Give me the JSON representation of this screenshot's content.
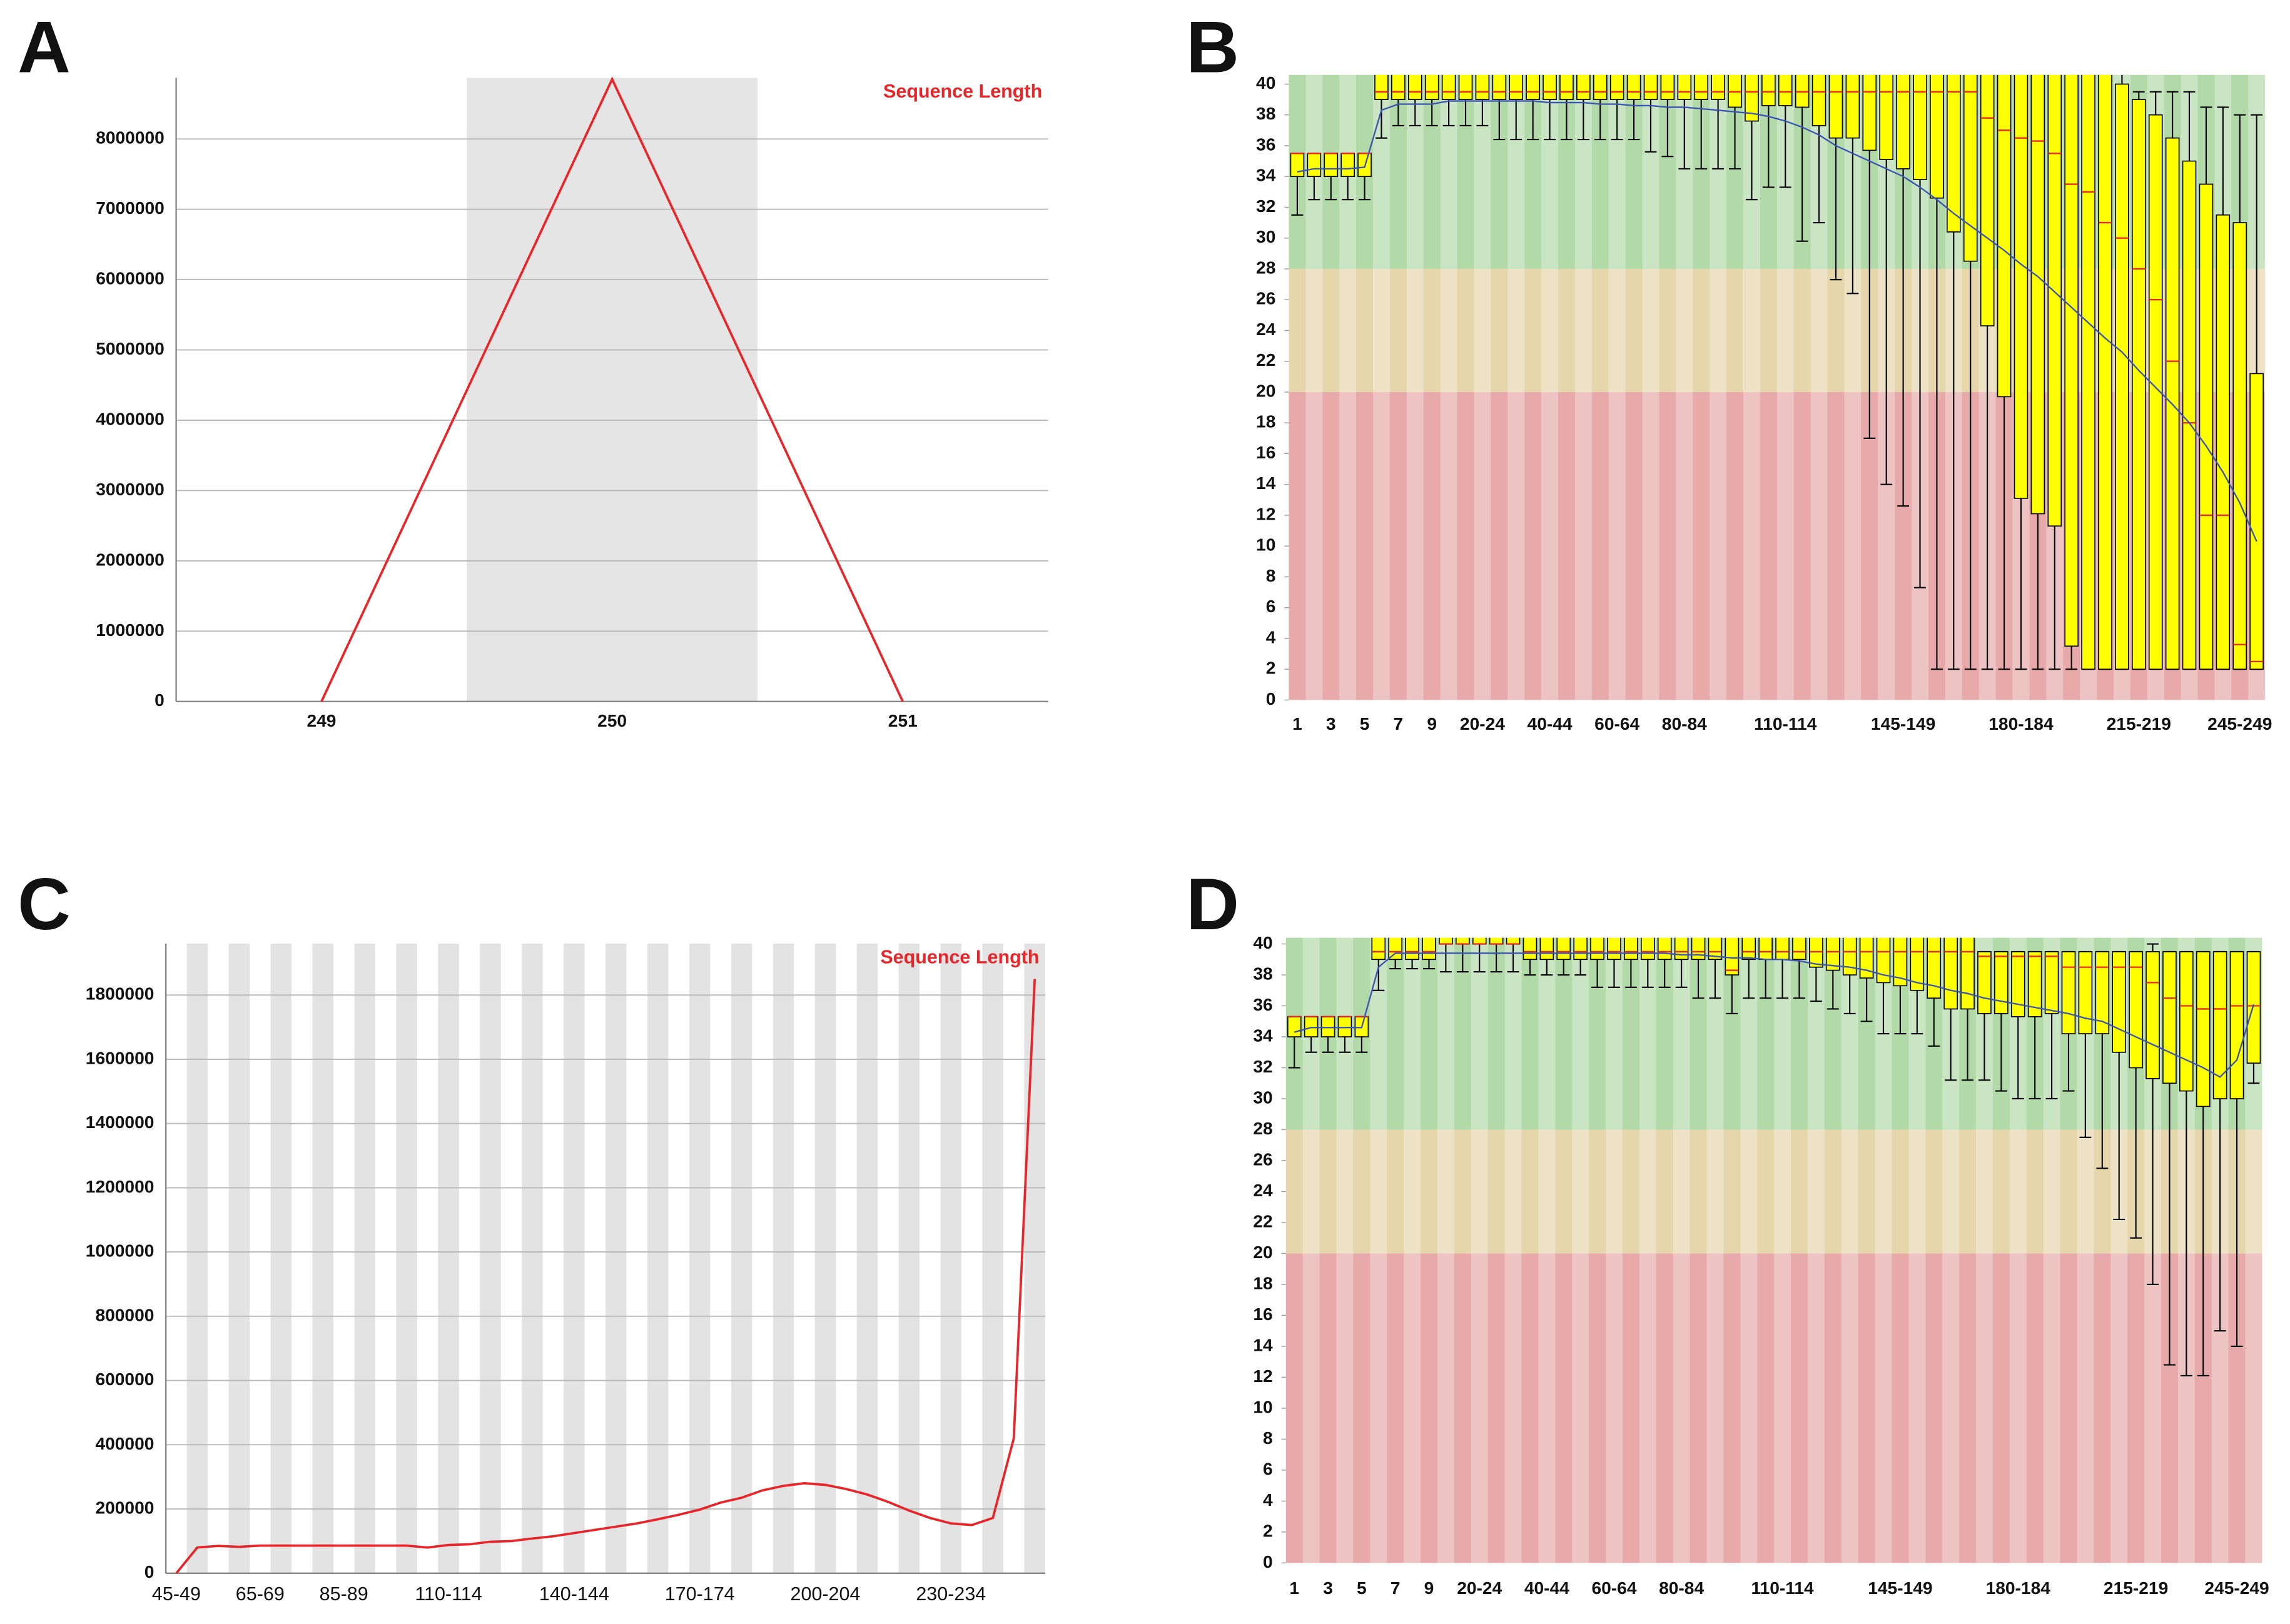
{
  "chart_data": [
    {
      "type": "line",
      "label": "A",
      "legend": "Sequence Length",
      "legend_position": "upper right",
      "color": "#e8262a",
      "categories": [
        "249",
        "250",
        "251"
      ],
      "values": [
        0,
        8850000,
        0
      ],
      "ylim": [
        0,
        8870000
      ],
      "yticks": [
        0,
        1000000,
        2000000,
        3000000,
        4000000,
        5000000,
        6000000,
        7000000,
        8000000
      ],
      "grid": true
    },
    {
      "type": "box",
      "label": "B",
      "categories": [
        "1",
        null,
        "3",
        null,
        "5",
        null,
        "7",
        null,
        "9",
        null,
        null,
        "20-24",
        null,
        null,
        null,
        "40-44",
        null,
        null,
        null,
        "60-64",
        null,
        null,
        null,
        "80-84",
        null,
        null,
        null,
        null,
        null,
        "110-114",
        null,
        null,
        null,
        null,
        null,
        null,
        "145-149",
        null,
        null,
        null,
        null,
        null,
        null,
        "180-184",
        null,
        null,
        null,
        null,
        null,
        null,
        "215-219",
        null,
        null,
        null,
        null,
        null,
        "245-249",
        null
      ],
      "whisker_low": [
        31.5,
        32.5,
        32.5,
        32.5,
        32.5,
        36.5,
        37.3,
        37.3,
        37.3,
        37.3,
        37.3,
        37.3,
        36.4,
        36.4,
        36.4,
        36.4,
        36.4,
        36.4,
        36.4,
        36.4,
        36.4,
        35.6,
        35.3,
        34.5,
        34.5,
        34.5,
        34.5,
        32.5,
        33.3,
        33.3,
        29.8,
        31,
        27.3,
        26.4,
        17,
        14,
        12.6,
        7.3,
        2,
        2,
        2,
        2,
        2,
        2,
        2,
        2,
        2,
        2,
        2,
        2,
        2,
        2,
        2,
        2,
        2,
        2,
        2,
        2
      ],
      "q1": [
        34,
        34,
        34,
        34,
        34,
        39,
        39,
        39,
        39,
        39,
        39,
        39,
        39,
        39,
        39,
        39,
        39,
        39,
        39,
        39,
        39,
        39,
        39,
        39,
        39,
        39,
        38.5,
        37.6,
        38.6,
        38.6,
        38.5,
        37.3,
        36.5,
        36.5,
        35.7,
        35.1,
        34.5,
        33.8,
        32.6,
        30.4,
        28.5,
        24.3,
        19.7,
        13.1,
        12.1,
        11.3,
        3.5,
        2,
        2,
        2,
        2,
        2,
        2,
        2,
        2,
        2,
        2,
        2
      ],
      "median": [
        35.5,
        35.5,
        35.5,
        35.5,
        35.5,
        39.5,
        39.5,
        39.5,
        39.5,
        39.5,
        39.5,
        39.5,
        39.5,
        39.5,
        39.5,
        39.5,
        39.5,
        39.5,
        39.5,
        39.5,
        39.5,
        39.5,
        39.5,
        39.5,
        39.5,
        39.5,
        39.5,
        39.5,
        39.5,
        39.5,
        39.5,
        39.5,
        39.5,
        39.5,
        39.5,
        39.5,
        39.5,
        39.5,
        39.5,
        39.5,
        39.5,
        37.8,
        37,
        36.5,
        36.3,
        35.5,
        33.5,
        33,
        31,
        30,
        28,
        26,
        22,
        18,
        12,
        12,
        3.6,
        2.5
      ],
      "q3": [
        35.5,
        35.5,
        35.5,
        35.5,
        35.5,
        41,
        41,
        41,
        41,
        41,
        41,
        41,
        41,
        41,
        41,
        41,
        41,
        41,
        41,
        41,
        41,
        41,
        41,
        41,
        41,
        41,
        41,
        41,
        41,
        41,
        41,
        41,
        41,
        41,
        41,
        41,
        41,
        41,
        41,
        41,
        41,
        41,
        41,
        41,
        41,
        41,
        41,
        41,
        41,
        40,
        39,
        38,
        36.5,
        35,
        33.5,
        31.5,
        31,
        21.2
      ],
      "whisker_high": [
        35.5,
        35.5,
        35.5,
        35.5,
        35.5,
        41,
        41,
        41,
        41,
        41,
        41,
        41,
        41,
        41,
        41,
        41,
        41,
        41,
        41,
        41,
        41,
        41,
        41,
        41,
        41,
        41,
        41,
        41,
        41,
        41,
        41,
        41,
        41,
        41,
        41,
        41,
        41,
        41,
        41,
        41,
        41,
        41,
        41,
        41,
        41,
        41,
        41,
        41,
        41,
        41,
        39.5,
        39.5,
        39.5,
        39.5,
        38.5,
        38.5,
        38,
        38
      ],
      "mean": [
        34.3,
        34.5,
        34.5,
        34.5,
        34.6,
        38.3,
        38.7,
        38.7,
        38.7,
        38.9,
        38.9,
        38.9,
        38.9,
        38.9,
        38.9,
        38.8,
        38.8,
        38.8,
        38.7,
        38.7,
        38.6,
        38.6,
        38.5,
        38.5,
        38.4,
        38.3,
        38.2,
        38.1,
        37.9,
        37.6,
        37.2,
        36.7,
        36,
        35.5,
        35,
        34.5,
        34,
        33.3,
        32.5,
        31.6,
        30.8,
        30,
        29.2,
        28.3,
        27.5,
        26.5,
        25.5,
        24.5,
        23.5,
        22.6,
        21.4,
        20.3,
        19.2,
        18,
        16.5,
        14.8,
        12.8,
        10.3
      ],
      "ylim": [
        0,
        40.6
      ],
      "yticks": [
        0,
        2,
        4,
        6,
        8,
        10,
        12,
        14,
        16,
        18,
        20,
        22,
        24,
        26,
        28,
        30,
        32,
        34,
        36,
        38,
        40
      ],
      "box_color": "#ffff00",
      "median_color": "#e8262a",
      "mean_color": "#3a55b4",
      "zones": [
        {
          "from": 0,
          "color": "#e7a9a9"
        },
        {
          "from": 20,
          "color": "#e6d6ac"
        },
        {
          "from": 28,
          "color": "#b2daa9"
        }
      ]
    },
    {
      "type": "line",
      "label": "C",
      "legend": "Sequence Length",
      "legend_position": "upper right",
      "color": "#e8262a",
      "categories": [
        "45-49",
        null,
        null,
        null,
        "65-69",
        null,
        null,
        null,
        "85-89",
        null,
        null,
        null,
        null,
        "110-114",
        null,
        null,
        null,
        null,
        null,
        "140-144",
        null,
        null,
        null,
        null,
        null,
        "170-174",
        null,
        null,
        null,
        null,
        null,
        "200-204",
        null,
        null,
        null,
        null,
        null,
        "230-234",
        null,
        null,
        null,
        null
      ],
      "values": [
        0,
        80000,
        85000,
        82000,
        86000,
        86000,
        86000,
        86000,
        86000,
        86000,
        86000,
        86000,
        80000,
        88000,
        90000,
        98000,
        100000,
        108000,
        115000,
        125000,
        135000,
        145000,
        155000,
        168000,
        182000,
        198000,
        220000,
        235000,
        258000,
        272000,
        280000,
        275000,
        262000,
        245000,
        222000,
        195000,
        172000,
        155000,
        150000,
        172000,
        420000,
        1850000
      ],
      "ylim": [
        0,
        1960000
      ],
      "yticks": [
        0,
        200000,
        400000,
        600000,
        800000,
        1000000,
        1200000,
        1400000,
        1600000,
        1800000
      ],
      "grid": true
    },
    {
      "type": "box",
      "label": "D",
      "categories": [
        "1",
        null,
        "3",
        null,
        "5",
        null,
        "7",
        null,
        "9",
        null,
        null,
        "20-24",
        null,
        null,
        null,
        "40-44",
        null,
        null,
        null,
        "60-64",
        null,
        null,
        null,
        "80-84",
        null,
        null,
        null,
        null,
        null,
        "110-114",
        null,
        null,
        null,
        null,
        null,
        null,
        "145-149",
        null,
        null,
        null,
        null,
        null,
        null,
        "180-184",
        null,
        null,
        null,
        null,
        null,
        null,
        "215-219",
        null,
        null,
        null,
        null,
        null,
        "245-249",
        null
      ],
      "whisker_low": [
        32,
        33,
        33,
        33,
        33,
        37,
        38.4,
        38.4,
        38.4,
        38.2,
        38.2,
        38.2,
        38.2,
        38.2,
        38,
        38,
        38,
        38,
        37.2,
        37.2,
        37.2,
        37.2,
        37.2,
        37.2,
        36.5,
        36.5,
        35.5,
        36.5,
        36.5,
        36.5,
        36.5,
        36.3,
        35.8,
        35.5,
        35,
        34.2,
        34.2,
        34.2,
        33.4,
        31.2,
        31.2,
        31.2,
        30.5,
        30,
        30,
        30,
        30.5,
        27.5,
        25.5,
        22.2,
        21,
        18,
        12.8,
        12.1,
        12.1,
        15,
        14,
        31
      ],
      "q1": [
        34,
        34,
        34,
        34,
        34,
        39,
        39,
        39,
        39,
        40,
        40,
        40,
        40,
        40,
        39,
        39,
        39,
        39,
        39,
        39,
        39,
        39,
        39,
        39,
        39,
        39,
        38,
        39,
        39,
        39,
        39,
        38.5,
        38.3,
        38,
        37.8,
        37.5,
        37.3,
        37,
        36.5,
        35.8,
        35.8,
        35.5,
        35.5,
        35.3,
        35.3,
        35.5,
        34.2,
        34.2,
        34.2,
        33,
        32,
        31.3,
        31,
        30.5,
        29.5,
        30,
        30,
        32.3
      ],
      "median": [
        35.3,
        35.3,
        35.3,
        35.3,
        35.3,
        39.5,
        39.5,
        39.5,
        39.5,
        40,
        40,
        40,
        40,
        40,
        39.5,
        39.5,
        39.5,
        39.5,
        39.5,
        39.5,
        39.5,
        39.5,
        39.5,
        39.5,
        39.5,
        39.5,
        38.3,
        39.5,
        39.5,
        39.5,
        39.5,
        39.5,
        39.5,
        39.5,
        39.5,
        39.5,
        39.5,
        39.5,
        39.5,
        39.5,
        39.5,
        39.2,
        39.2,
        39.2,
        39.2,
        39.2,
        38.5,
        38.5,
        38.5,
        38.5,
        38.5,
        37.5,
        36.5,
        36,
        35.8,
        35.8,
        36,
        36
      ],
      "q3": [
        35.3,
        35.3,
        35.3,
        35.3,
        35.3,
        41,
        41,
        41,
        41,
        41,
        41,
        41,
        41,
        41,
        41,
        41,
        41,
        41,
        41,
        41,
        41,
        41,
        41,
        41,
        41,
        41,
        41,
        41,
        41,
        41,
        41,
        41,
        41,
        41,
        41,
        41,
        41,
        41,
        41,
        41,
        41,
        39.5,
        39.5,
        39.5,
        39.5,
        39.5,
        39.5,
        39.5,
        39.5,
        39.5,
        39.5,
        39.5,
        39.5,
        39.5,
        39.5,
        39.5,
        39.5,
        39.5
      ],
      "whisker_high": [
        35.3,
        35.3,
        35.3,
        35.3,
        35.3,
        41,
        41,
        41,
        41,
        41,
        41,
        41,
        41,
        41,
        41,
        41,
        41,
        41,
        41,
        41,
        41,
        41,
        41,
        41,
        41,
        41,
        41,
        41,
        41,
        41,
        41,
        41,
        41,
        41,
        41,
        41,
        41,
        41,
        41,
        41,
        41,
        39.5,
        39.5,
        39.5,
        39.5,
        39.5,
        39.5,
        39.5,
        39.5,
        39.5,
        39.5,
        40,
        39.5,
        39.5,
        39.5,
        39.5,
        39.5,
        39.5
      ],
      "mean": [
        34.3,
        34.6,
        34.6,
        34.6,
        34.6,
        38.5,
        39.4,
        39.4,
        39.4,
        39.4,
        39.4,
        39.4,
        39.4,
        39.4,
        39.4,
        39.4,
        39.4,
        39.4,
        39.4,
        39.4,
        39.4,
        39.4,
        39.4,
        39.3,
        39.3,
        39.2,
        39.1,
        39.1,
        39,
        39,
        38.9,
        38.7,
        38.6,
        38.5,
        38.3,
        38,
        37.8,
        37.5,
        37.3,
        37,
        36.8,
        36.5,
        36.3,
        36.1,
        35.9,
        35.7,
        35.5,
        35.2,
        35,
        34.5,
        34,
        33.5,
        33,
        32.5,
        32,
        31.4,
        32.5,
        36.1
      ],
      "ylim": [
        0,
        40.4
      ],
      "yticks": [
        0,
        2,
        4,
        6,
        8,
        10,
        12,
        14,
        16,
        18,
        20,
        22,
        24,
        26,
        28,
        30,
        32,
        34,
        36,
        38,
        40
      ],
      "box_color": "#ffff00",
      "median_color": "#e8262a",
      "mean_color": "#3a55b4",
      "zones": [
        {
          "from": 0,
          "color": "#e7a9a9"
        },
        {
          "from": 20,
          "color": "#e6d6ac"
        },
        {
          "from": 28,
          "color": "#b2daa9"
        }
      ]
    }
  ]
}
